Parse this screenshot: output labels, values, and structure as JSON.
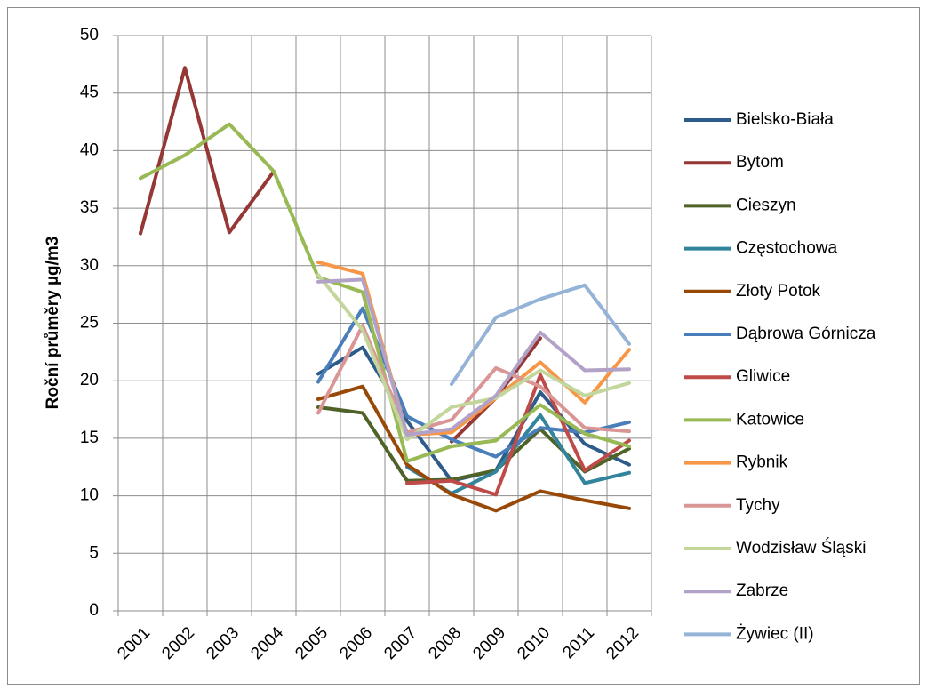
{
  "chart_data": {
    "type": "line",
    "y_label": "Roční průměry µg/m3",
    "categories": [
      "2001",
      "2002",
      "2003",
      "2004",
      "2005",
      "2006",
      "2007",
      "2008",
      "2009",
      "2010",
      "2011",
      "2012"
    ],
    "ylim": [
      0,
      50
    ],
    "yticks": [
      0,
      5,
      10,
      15,
      20,
      25,
      30,
      35,
      40,
      45,
      50
    ],
    "grid": true,
    "legend": "right",
    "series": [
      {
        "name": "Bielsko-Biała",
        "color": "#2e5c8a",
        "values": [
          null,
          null,
          null,
          null,
          20.6,
          22.9,
          16.5,
          11.3,
          12.2,
          19.0,
          14.5,
          12.7
        ]
      },
      {
        "name": "Bytom",
        "color": "#953735",
        "values": [
          32.8,
          47.2,
          32.9,
          38.2,
          null,
          null,
          null,
          14.7,
          18.5,
          23.7,
          null,
          null
        ]
      },
      {
        "name": "Cieszyn",
        "color": "#4f6228",
        "values": [
          null,
          null,
          null,
          null,
          17.7,
          17.2,
          11.3,
          11.4,
          12.2,
          15.8,
          12.1,
          14.1
        ]
      },
      {
        "name": "Częstochowa",
        "color": "#31849b",
        "values": [
          null,
          null,
          null,
          null,
          null,
          null,
          12.5,
          10.2,
          12.1,
          17.0,
          11.1,
          12.0
        ]
      },
      {
        "name": "Złoty Potok",
        "color": "#984807",
        "values": [
          null,
          null,
          null,
          null,
          18.4,
          19.5,
          12.7,
          10.1,
          8.7,
          10.4,
          9.6,
          8.9
        ]
      },
      {
        "name": "Dąbrowa Górnicza",
        "color": "#4a7ebb",
        "values": [
          null,
          null,
          null,
          null,
          19.9,
          26.3,
          16.9,
          14.9,
          13.4,
          15.9,
          15.5,
          16.4
        ]
      },
      {
        "name": "Gliwice",
        "color": "#be4b48",
        "values": [
          null,
          null,
          null,
          null,
          null,
          null,
          11.1,
          11.3,
          10.1,
          20.5,
          12.2,
          14.8
        ]
      },
      {
        "name": "Katowice",
        "color": "#98b954",
        "values": [
          37.6,
          39.6,
          42.3,
          38.2,
          29.0,
          27.7,
          13.0,
          14.3,
          14.8,
          17.9,
          15.4,
          14.3
        ]
      },
      {
        "name": "Rybnik",
        "color": "#f79646",
        "values": [
          null,
          null,
          null,
          null,
          30.3,
          29.3,
          15.3,
          15.5,
          18.5,
          21.6,
          18.1,
          22.7
        ]
      },
      {
        "name": "Tychy",
        "color": "#d99694",
        "values": [
          null,
          null,
          null,
          null,
          17.2,
          24.8,
          15.5,
          16.6,
          21.1,
          19.5,
          15.9,
          15.6
        ]
      },
      {
        "name": "Wodzisław Śląski",
        "color": "#c3d69b",
        "values": [
          null,
          null,
          null,
          null,
          29.2,
          24.4,
          14.9,
          17.7,
          18.5,
          20.9,
          18.7,
          19.8
        ]
      },
      {
        "name": "Zabrze",
        "color": "#b3a2c7",
        "values": [
          null,
          null,
          null,
          null,
          28.6,
          28.8,
          15.3,
          15.8,
          18.7,
          24.2,
          20.9,
          21.0
        ]
      },
      {
        "name": "Żywiec (II)",
        "color": "#95b3d7",
        "values": [
          null,
          null,
          null,
          null,
          null,
          null,
          null,
          19.7,
          25.5,
          27.1,
          28.3,
          23.2
        ]
      }
    ]
  }
}
